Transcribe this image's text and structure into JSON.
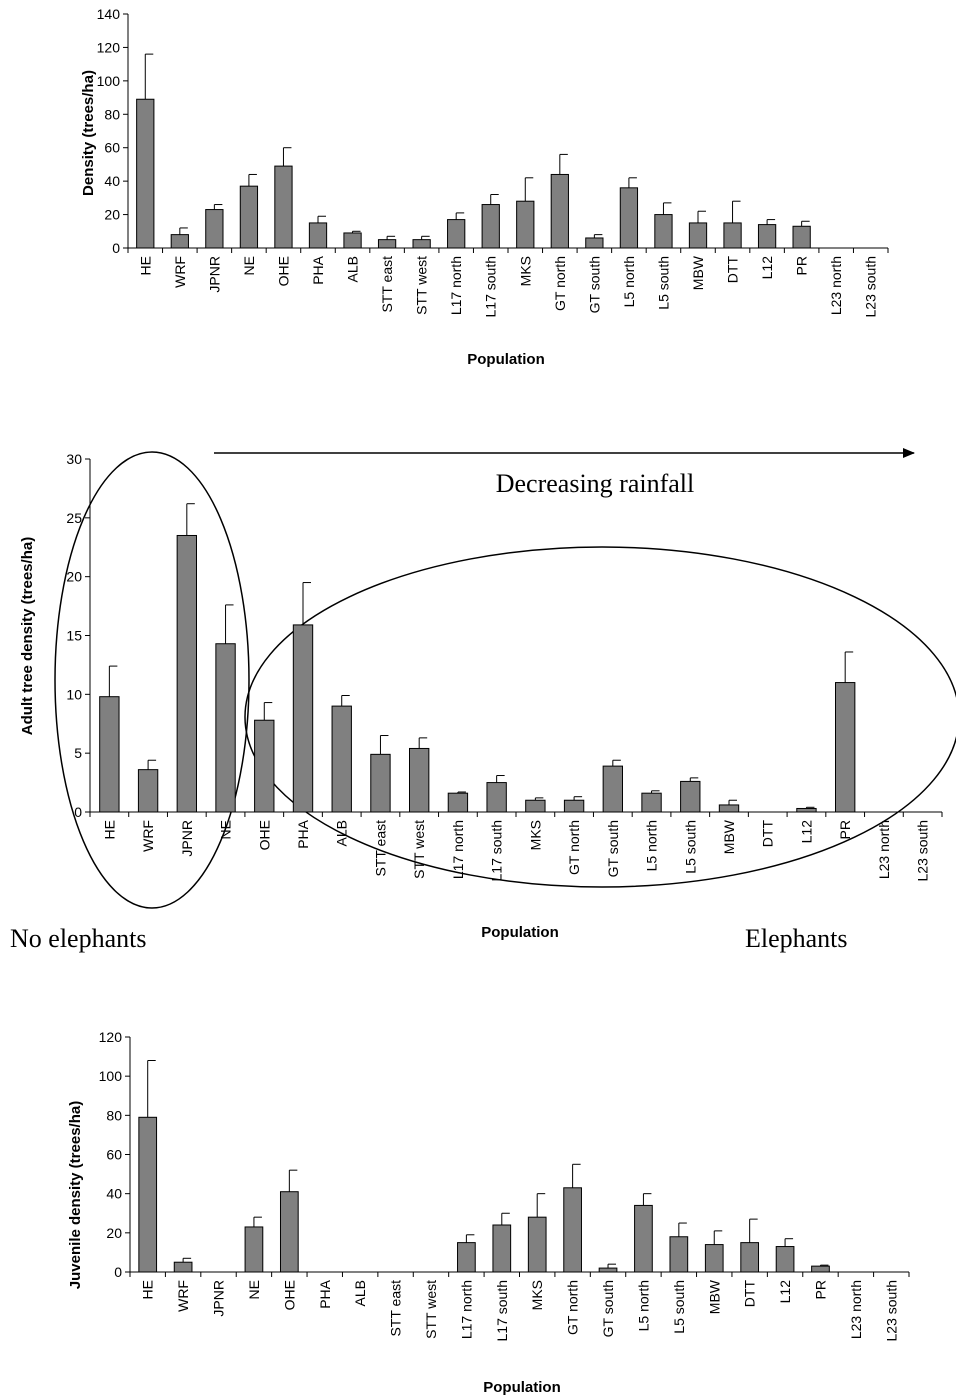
{
  "chart_data": [
    {
      "type": "bar",
      "title": "",
      "xlabel": "Population",
      "ylabel": "Density (trees/ha)",
      "ylim": [
        0,
        140
      ],
      "yticks": [
        0,
        20,
        40,
        60,
        80,
        100,
        120,
        140
      ],
      "grid": false,
      "bar_color": "#808080",
      "categories": [
        "HE",
        "WRF",
        "JPNR",
        "NE",
        "OHE",
        "PHA",
        "ALB",
        "STT east",
        "STT west",
        "L17 north",
        "L17 south",
        "MKS",
        "GT north",
        "GT south",
        "L5 north",
        "L5 south",
        "MBW",
        "DTT",
        "L12",
        "PR",
        "L23 north",
        "L23 south"
      ],
      "values": [
        89,
        8,
        23,
        37,
        49,
        15,
        9,
        5,
        5,
        17,
        26,
        28,
        44,
        6,
        36,
        20,
        15,
        15,
        14,
        13,
        0,
        0
      ],
      "error_upper": [
        116,
        12,
        26,
        44,
        60,
        19,
        10,
        7,
        7,
        21,
        32,
        42,
        56,
        8,
        42,
        27,
        22,
        28,
        17,
        16,
        0,
        0
      ]
    },
    {
      "type": "bar",
      "title": "",
      "xlabel": "Population",
      "ylabel": "Adult tree density (trees/ha)",
      "ylim": [
        0,
        30
      ],
      "yticks": [
        0,
        5,
        10,
        15,
        20,
        25,
        30
      ],
      "grid": false,
      "bar_color": "#808080",
      "categories": [
        "HE",
        "WRF",
        "JPNR",
        "NE",
        "OHE",
        "PHA",
        "ALB",
        "STT east",
        "STT west",
        "L17 north",
        "L17 south",
        "MKS",
        "GT north",
        "GT south",
        "L5 north",
        "L5 south",
        "MBW",
        "DTT",
        "L12",
        "PR",
        "L23 north",
        "L23 south"
      ],
      "values": [
        9.8,
        3.6,
        23.5,
        14.3,
        7.8,
        15.9,
        9.0,
        4.9,
        5.4,
        1.6,
        2.5,
        1.0,
        1.0,
        3.9,
        1.6,
        2.6,
        0.6,
        0,
        0.3,
        11.0,
        0,
        0
      ],
      "error_upper": [
        12.4,
        4.4,
        26.2,
        17.6,
        9.3,
        19.5,
        9.9,
        6.5,
        6.3,
        1.7,
        3.1,
        1.2,
        1.3,
        4.4,
        1.8,
        2.9,
        1.0,
        0,
        0.4,
        13.6,
        0,
        0
      ],
      "annotations": {
        "arrow_label": "Decreasing rainfall",
        "left_group": "No elephants",
        "right_group": "Elephants"
      }
    },
    {
      "type": "bar",
      "title": "",
      "xlabel": "Population",
      "ylabel": "Juvenile density (trees/ha)",
      "ylim": [
        0,
        120
      ],
      "yticks": [
        0,
        20,
        40,
        60,
        80,
        100,
        120
      ],
      "grid": false,
      "bar_color": "#808080",
      "categories": [
        "HE",
        "WRF",
        "JPNR",
        "NE",
        "OHE",
        "PHA",
        "ALB",
        "STT east",
        "STT west",
        "L17 north",
        "L17 south",
        "MKS",
        "GT north",
        "GT south",
        "L5 north",
        "L5 south",
        "MBW",
        "DTT",
        "L12",
        "PR",
        "L23 north",
        "L23 south"
      ],
      "values": [
        79,
        5,
        0,
        23,
        41,
        0,
        0,
        0,
        0,
        15,
        24,
        28,
        43,
        2,
        34,
        18,
        14,
        15,
        13,
        3,
        0,
        0
      ],
      "error_upper": [
        108,
        7,
        0,
        28,
        52,
        0,
        0,
        0,
        0,
        19,
        30,
        40,
        55,
        4,
        40,
        25,
        21,
        27,
        17,
        3.5,
        0,
        0
      ]
    }
  ]
}
